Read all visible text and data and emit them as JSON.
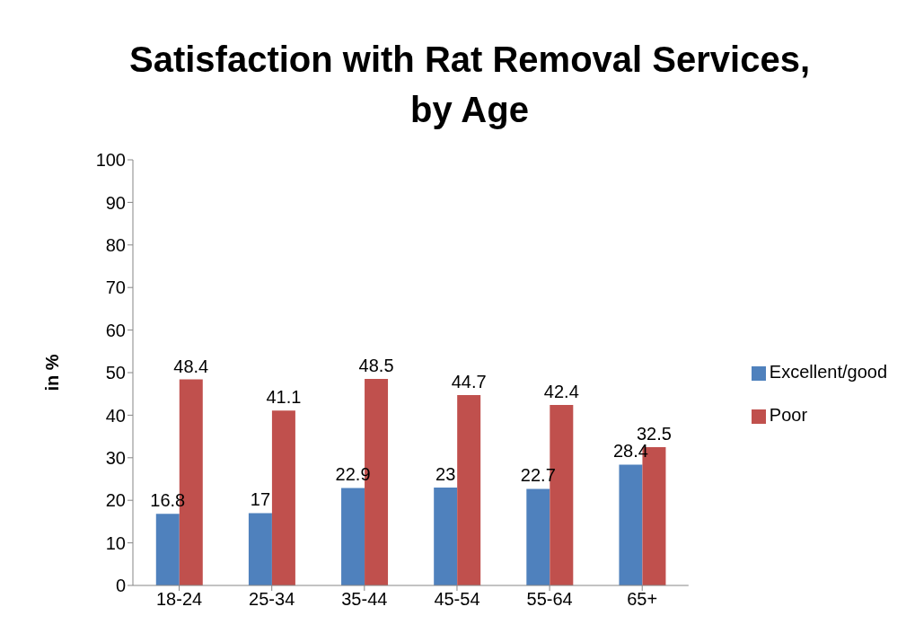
{
  "chart_data": {
    "type": "bar",
    "title": "Satisfaction with Rat Removal Services,\nby Age",
    "ylabel": "in %",
    "categories": [
      "18-24",
      "25-34",
      "35-44",
      "45-54",
      "55-64",
      "65+"
    ],
    "series": [
      {
        "name": "Excellent/good",
        "color": "#4f81bd",
        "values": [
          16.8,
          17,
          22.9,
          23,
          22.7,
          28.4
        ]
      },
      {
        "name": "Poor",
        "color": "#c0504d",
        "values": [
          48.4,
          41.1,
          48.5,
          44.7,
          42.4,
          32.5
        ]
      }
    ],
    "ylim": [
      0,
      100
    ],
    "yticks": [
      0,
      10,
      20,
      30,
      40,
      50,
      60,
      70,
      80,
      90,
      100
    ],
    "grid": false,
    "legend": "right",
    "data_labels": true
  }
}
